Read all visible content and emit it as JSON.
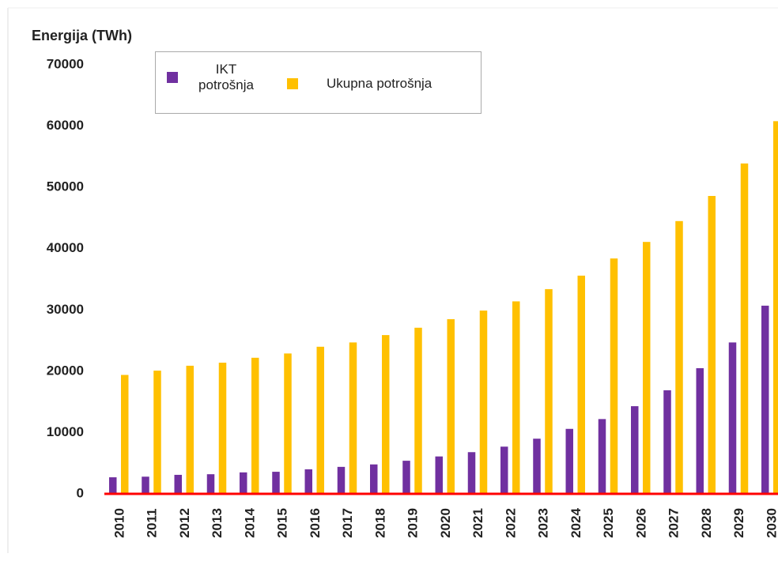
{
  "chart_data": {
    "type": "bar",
    "y_label": "Energija (TWh)",
    "categories": [
      "2010",
      "2011",
      "2012",
      "2013",
      "2014",
      "2015",
      "2016",
      "2017",
      "2018",
      "2019",
      "2020",
      "2021",
      "2022",
      "2023",
      "2024",
      "2025",
      "2026",
      "2027",
      "2028",
      "2029",
      "2030"
    ],
    "series": [
      {
        "name": "IKT potrošnja",
        "color": "#7030a0",
        "values": [
          2700,
          2800,
          3100,
          3200,
          3500,
          3600,
          4000,
          4400,
          4800,
          5400,
          6100,
          6800,
          7700,
          9000,
          10600,
          12200,
          14300,
          16900,
          20500,
          24700,
          30700
        ]
      },
      {
        "name": "Ukupna potrošnja",
        "color": "#ffc000",
        "values": [
          19400,
          20100,
          20900,
          21400,
          22200,
          22900,
          24000,
          24700,
          25900,
          27100,
          28500,
          29900,
          31400,
          33400,
          35600,
          38400,
          41100,
          44500,
          48600,
          53900,
          60800
        ]
      }
    ],
    "ylim": [
      0,
      70000
    ],
    "yticks": [
      0,
      10000,
      20000,
      30000,
      40000,
      50000,
      60000,
      70000
    ],
    "baseline_color": "#ff0000"
  }
}
